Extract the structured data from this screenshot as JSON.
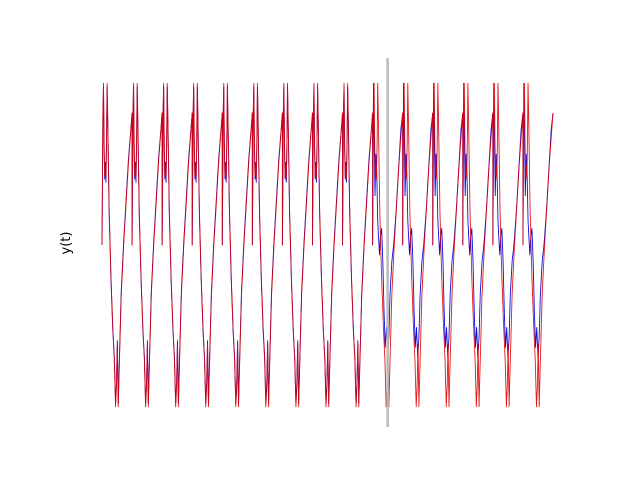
{
  "chart_data": {
    "type": "line",
    "title": "",
    "xlabel": "",
    "ylabel": "y(t)",
    "ylim": [
      -1.05,
      1.05
    ],
    "grid": false,
    "axes_visible": false,
    "cycles": 15,
    "split_after_cycle": 9.5,
    "series": [
      {
        "color": "#e00000",
        "cycle_profile": [
          [
            0.0,
            0.0
          ],
          [
            0.03,
            0.8
          ],
          [
            0.05,
            0.98
          ],
          [
            0.07,
            0.62
          ],
          [
            0.09,
            0.42
          ],
          [
            0.11,
            0.48
          ],
          [
            0.13,
            0.4
          ],
          [
            0.15,
            0.62
          ],
          [
            0.17,
            0.98
          ],
          [
            0.19,
            0.78
          ],
          [
            0.24,
            0.2
          ],
          [
            0.3,
            -0.2
          ],
          [
            0.36,
            -0.5
          ],
          [
            0.41,
            -0.7
          ],
          [
            0.45,
            -0.98
          ],
          [
            0.48,
            -0.86
          ],
          [
            0.51,
            -0.6
          ],
          [
            0.54,
            -0.98
          ],
          [
            0.58,
            -0.7
          ],
          [
            0.64,
            -0.3
          ],
          [
            0.72,
            0.0
          ],
          [
            0.8,
            0.25
          ],
          [
            0.88,
            0.5
          ],
          [
            0.96,
            0.7
          ],
          [
            1.0,
            0.8
          ]
        ]
      },
      {
        "color": "#1010e0",
        "cycle_profile": [
          [
            0.0,
            0.0
          ],
          [
            0.03,
            0.78
          ],
          [
            0.05,
            0.96
          ],
          [
            0.07,
            0.58
          ],
          [
            0.09,
            0.4
          ],
          [
            0.11,
            0.5
          ],
          [
            0.13,
            0.38
          ],
          [
            0.15,
            0.6
          ],
          [
            0.17,
            0.96
          ],
          [
            0.19,
            0.76
          ],
          [
            0.24,
            0.18
          ],
          [
            0.3,
            -0.22
          ],
          [
            0.36,
            -0.52
          ],
          [
            0.41,
            -0.68
          ],
          [
            0.45,
            -0.96
          ],
          [
            0.48,
            -0.84
          ],
          [
            0.51,
            -0.58
          ],
          [
            0.54,
            -0.96
          ],
          [
            0.58,
            -0.68
          ],
          [
            0.64,
            -0.28
          ],
          [
            0.72,
            0.02
          ],
          [
            0.8,
            0.27
          ],
          [
            0.88,
            0.52
          ],
          [
            0.96,
            0.7
          ],
          [
            1.0,
            0.8
          ]
        ],
        "after_split_profile": [
          [
            0.0,
            0.0
          ],
          [
            0.03,
            0.98
          ],
          [
            0.05,
            0.7
          ],
          [
            0.08,
            0.3
          ],
          [
            0.11,
            0.55
          ],
          [
            0.14,
            0.42
          ],
          [
            0.17,
            0.15
          ],
          [
            0.2,
            0.04
          ],
          [
            0.23,
            -0.06
          ],
          [
            0.26,
            0.05
          ],
          [
            0.3,
            0.1
          ],
          [
            0.34,
            -0.1
          ],
          [
            0.38,
            -0.4
          ],
          [
            0.42,
            -0.62
          ],
          [
            0.46,
            -0.5
          ],
          [
            0.5,
            -0.68
          ],
          [
            0.54,
            -0.56
          ],
          [
            0.58,
            -0.3
          ],
          [
            0.64,
            -0.1
          ],
          [
            0.7,
            0.0
          ],
          [
            0.78,
            0.2
          ],
          [
            0.86,
            0.45
          ],
          [
            0.94,
            0.7
          ],
          [
            1.0,
            0.8
          ]
        ]
      }
    ],
    "divider": {
      "color": "#bbbbbb",
      "label": ""
    }
  }
}
